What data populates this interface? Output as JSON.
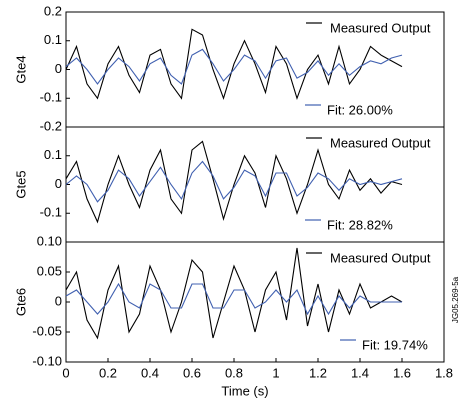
{
  "chart_data": [
    {
      "type": "line",
      "ylabel": "Gte4",
      "xlim": [
        0,
        1.8
      ],
      "ylim": [
        -0.2,
        0.2
      ],
      "yticks": [
        0.2,
        0.1,
        0,
        -0.1,
        -0.2
      ],
      "x": [
        0,
        0.05,
        0.1,
        0.15,
        0.2,
        0.25,
        0.3,
        0.35,
        0.4,
        0.45,
        0.5,
        0.55,
        0.6,
        0.65,
        0.7,
        0.75,
        0.8,
        0.85,
        0.9,
        0.95,
        1.0,
        1.05,
        1.1,
        1.15,
        1.2,
        1.25,
        1.3,
        1.35,
        1.4,
        1.45,
        1.5,
        1.55,
        1.6
      ],
      "series": [
        {
          "name": "Measured Output",
          "color": "#000000",
          "values": [
            0.0,
            0.08,
            -0.05,
            -0.1,
            0.02,
            0.08,
            -0.02,
            -0.08,
            0.05,
            0.07,
            -0.05,
            -0.1,
            0.14,
            0.12,
            0.0,
            -0.1,
            0.02,
            0.1,
            0.02,
            -0.08,
            0.08,
            0.02,
            -0.1,
            0.0,
            0.05,
            -0.05,
            0.08,
            -0.05,
            0.0,
            0.08,
            0.05,
            0.03,
            0.01
          ]
        },
        {
          "name": "Fit: 26.00%",
          "color": "#4060b0",
          "values": [
            0.01,
            0.04,
            0.0,
            -0.05,
            0.0,
            0.04,
            0.01,
            -0.04,
            0.02,
            0.04,
            -0.02,
            -0.05,
            0.05,
            0.07,
            0.02,
            -0.04,
            0.0,
            0.05,
            0.03,
            -0.03,
            0.03,
            0.04,
            -0.03,
            -0.01,
            0.03,
            -0.02,
            0.02,
            -0.02,
            0.01,
            0.03,
            0.02,
            0.04,
            0.05
          ]
        }
      ]
    },
    {
      "type": "line",
      "ylabel": "Gte5",
      "xlim": [
        0,
        1.8
      ],
      "ylim": [
        -0.2,
        0.2
      ],
      "yticks": [
        0.1,
        0,
        -0.1
      ],
      "x": [
        0,
        0.05,
        0.1,
        0.15,
        0.2,
        0.25,
        0.3,
        0.35,
        0.4,
        0.45,
        0.5,
        0.55,
        0.6,
        0.65,
        0.7,
        0.75,
        0.8,
        0.85,
        0.9,
        0.95,
        1.0,
        1.05,
        1.1,
        1.15,
        1.2,
        1.25,
        1.3,
        1.35,
        1.4,
        1.45,
        1.5,
        1.55,
        1.6
      ],
      "series": [
        {
          "name": "Measured Output",
          "color": "#000000",
          "values": [
            0.02,
            0.08,
            -0.05,
            -0.13,
            0.0,
            0.1,
            0.0,
            -0.08,
            0.05,
            0.12,
            -0.05,
            -0.1,
            0.12,
            0.15,
            0.02,
            -0.12,
            0.0,
            0.1,
            0.04,
            -0.08,
            0.1,
            0.02,
            -0.1,
            0.0,
            0.12,
            0.0,
            -0.05,
            0.05,
            -0.02,
            0.02,
            -0.03,
            0.01,
            0.0
          ]
        },
        {
          "name": "Fit: 28.82%",
          "color": "#4060b0",
          "values": [
            0.0,
            0.03,
            0.0,
            -0.06,
            -0.02,
            0.05,
            0.02,
            -0.04,
            0.01,
            0.06,
            0.0,
            -0.05,
            0.04,
            0.08,
            0.03,
            -0.05,
            -0.01,
            0.05,
            0.03,
            -0.04,
            0.04,
            0.04,
            -0.04,
            -0.01,
            0.04,
            0.02,
            -0.02,
            0.02,
            0.0,
            0.01,
            0.0,
            0.01,
            0.02
          ]
        }
      ]
    },
    {
      "type": "line",
      "ylabel": "Gte6",
      "xlabel": "Time (s)",
      "xlim": [
        0,
        1.8
      ],
      "ylim": [
        -0.1,
        0.1
      ],
      "yticks": [
        {
          "value": 0.1,
          "label": "0.10"
        },
        0.05,
        0,
        -0.05,
        {
          "value": -0.1,
          "label": "-0.10"
        }
      ],
      "xticks": [
        0,
        0.2,
        0.4,
        0.6,
        0.8,
        1,
        1.2,
        1.4,
        1.6,
        1.8
      ],
      "x": [
        0,
        0.05,
        0.1,
        0.15,
        0.2,
        0.25,
        0.3,
        0.35,
        0.4,
        0.45,
        0.5,
        0.55,
        0.6,
        0.65,
        0.7,
        0.75,
        0.8,
        0.85,
        0.9,
        0.95,
        1.0,
        1.05,
        1.1,
        1.15,
        1.2,
        1.25,
        1.3,
        1.35,
        1.4,
        1.45,
        1.5,
        1.55,
        1.6
      ],
      "series": [
        {
          "name": "Measured Output",
          "color": "#000000",
          "values": [
            0.02,
            0.05,
            -0.03,
            -0.06,
            0.02,
            0.06,
            -0.05,
            -0.02,
            0.06,
            0.02,
            -0.05,
            0.0,
            0.07,
            0.05,
            -0.06,
            0.0,
            0.06,
            0.02,
            -0.05,
            0.02,
            0.05,
            -0.03,
            0.09,
            -0.04,
            0.03,
            -0.05,
            0.02,
            -0.02,
            0.03,
            -0.01,
            0.0,
            0.01,
            0.0
          ]
        },
        {
          "name": "Fit: 19.74%",
          "color": "#4060b0",
          "values": [
            0.01,
            0.02,
            0.0,
            -0.02,
            0.0,
            0.03,
            0.0,
            -0.01,
            0.03,
            0.02,
            -0.01,
            -0.01,
            0.03,
            0.03,
            -0.01,
            -0.01,
            0.02,
            0.02,
            -0.01,
            0.0,
            0.02,
            0.0,
            0.02,
            -0.02,
            0.01,
            -0.02,
            0.01,
            -0.01,
            0.01,
            0.0,
            0.0,
            0.0,
            0.0
          ]
        }
      ]
    }
  ],
  "annotation": "JG05.269-5a"
}
